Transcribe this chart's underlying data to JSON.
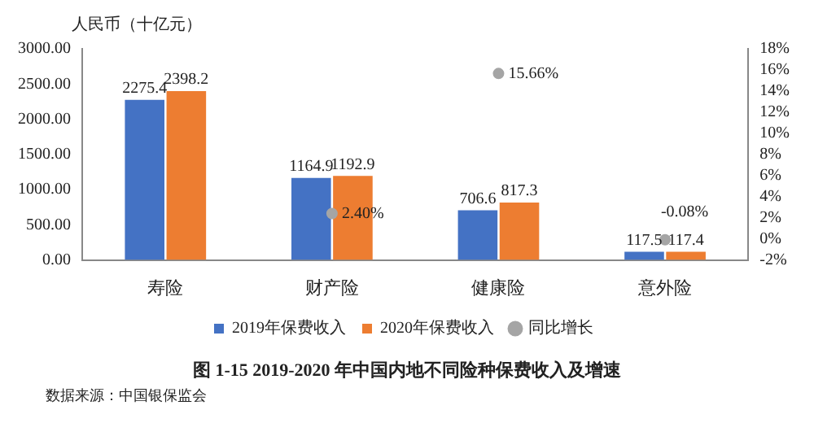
{
  "chart_data": {
    "type": "bar",
    "title": "图 1-15 2019-2020 年中国内地不同险种保费收入及增速",
    "ylabel": "人民币（十亿元）",
    "annotations": [
      "数据来源：中国银保监会"
    ],
    "categories": [
      "寿险",
      "财产险",
      "健康险",
      "意外险"
    ],
    "series": [
      {
        "name": "2019年保费收入",
        "color": "#4472c4",
        "values": [
          2275.4,
          1164.9,
          706.6,
          117.5
        ],
        "value_labels": [
          "2275.4",
          "1164.9",
          "706.6",
          "117.5"
        ]
      },
      {
        "name": "2020年保费收入",
        "color": "#ed7d31",
        "values": [
          2398.2,
          1192.9,
          817.3,
          117.4
        ],
        "value_labels": [
          "2398.2",
          "1192.9",
          "817.3",
          "117.4"
        ]
      },
      {
        "name": "同比增长",
        "type": "scatter",
        "axis": "y2",
        "color": "#a5a5a5",
        "values": [
          null,
          2.4,
          15.66,
          -0.08
        ],
        "value_labels": [
          null,
          "2.40%",
          "15.66%",
          "-0.08%"
        ]
      }
    ],
    "ylim": [
      0,
      3000
    ],
    "yticks": [
      {
        "value": 0,
        "label": "0.00"
      },
      {
        "value": 500,
        "label": "500.00"
      },
      {
        "value": 1000,
        "label": "1000.00"
      },
      {
        "value": 1500,
        "label": "1500.00"
      },
      {
        "value": 2000,
        "label": "2000.00"
      },
      {
        "value": 2500,
        "label": "2500.00"
      },
      {
        "value": 3000,
        "label": "3000.00"
      }
    ],
    "y2lim": [
      -2,
      18
    ],
    "y2ticks": [
      {
        "value": -2,
        "label": "-2%"
      },
      {
        "value": 0,
        "label": "0%"
      },
      {
        "value": 2,
        "label": "2%"
      },
      {
        "value": 4,
        "label": "4%"
      },
      {
        "value": 6,
        "label": "6%"
      },
      {
        "value": 8,
        "label": "8%"
      },
      {
        "value": 10,
        "label": "10%"
      },
      {
        "value": 12,
        "label": "12%"
      },
      {
        "value": 14,
        "label": "14%"
      },
      {
        "value": 16,
        "label": "16%"
      },
      {
        "value": 18,
        "label": "18%"
      }
    ],
    "grid": false,
    "legend": "bottom",
    "marker": "circle"
  }
}
